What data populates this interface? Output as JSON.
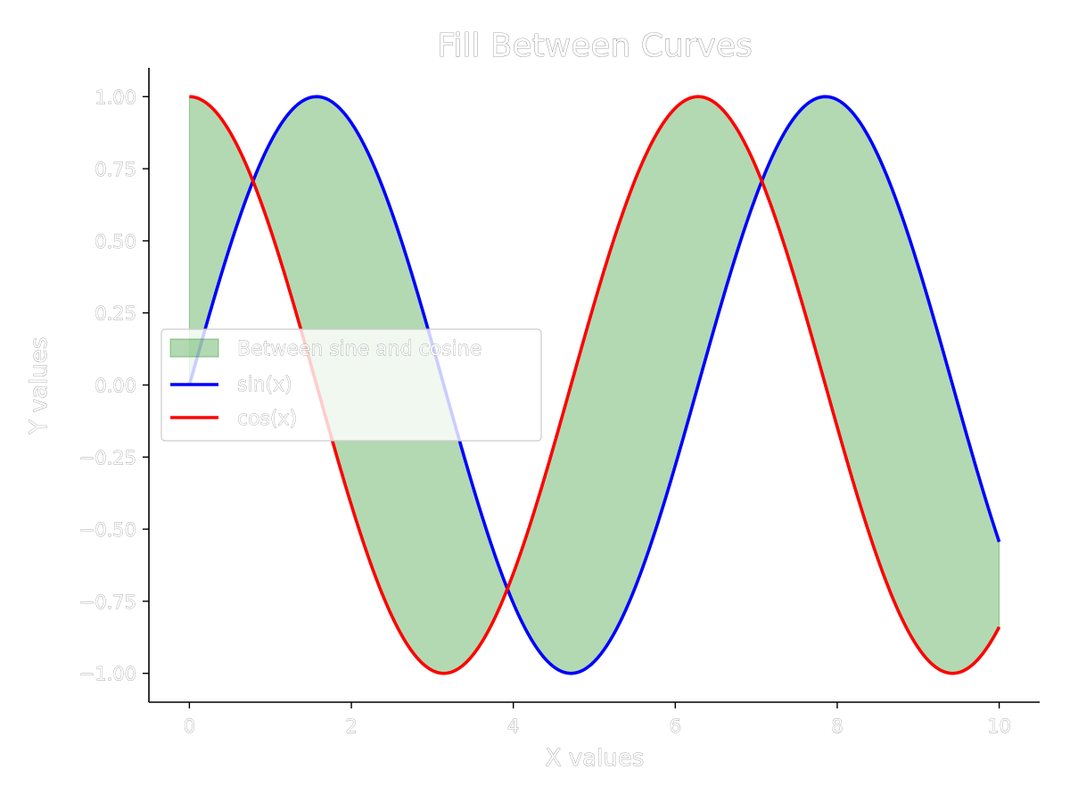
{
  "chart_data": {
    "type": "area",
    "title": "Fill Between Curves",
    "xlabel": "X values",
    "ylabel": "Y values",
    "xlim": [
      -0.5,
      10.5
    ],
    "ylim": [
      -1.1,
      1.1
    ],
    "x_ticks": [
      0,
      2,
      4,
      6,
      8,
      10
    ],
    "x_tick_labels": [
      "0",
      "2",
      "4",
      "6",
      "8",
      "10"
    ],
    "y_ticks": [
      1.0,
      0.75,
      0.5,
      0.25,
      0.0,
      -0.25,
      -0.5,
      -0.75,
      -1.0
    ],
    "y_tick_labels": [
      "1.00",
      "0.75",
      "0.50",
      "0.25",
      "0.00",
      "−0.25",
      "−0.50",
      "−0.75",
      "−1.00"
    ],
    "grid": false,
    "legend_position": "center-left",
    "x_range": [
      0,
      10
    ],
    "series": [
      {
        "name": "sin(x)",
        "function": "sin(x)",
        "color": "#0000ff"
      },
      {
        "name": "cos(x)",
        "function": "cos(x)",
        "color": "#ff0000"
      }
    ],
    "fill": {
      "name": "Between sine and cosine",
      "between": [
        "sin(x)",
        "cos(x)"
      ],
      "color": "#008000",
      "alpha": 0.3
    },
    "legend": [
      "Between sine and cosine",
      "sin(x)",
      "cos(x)"
    ]
  }
}
